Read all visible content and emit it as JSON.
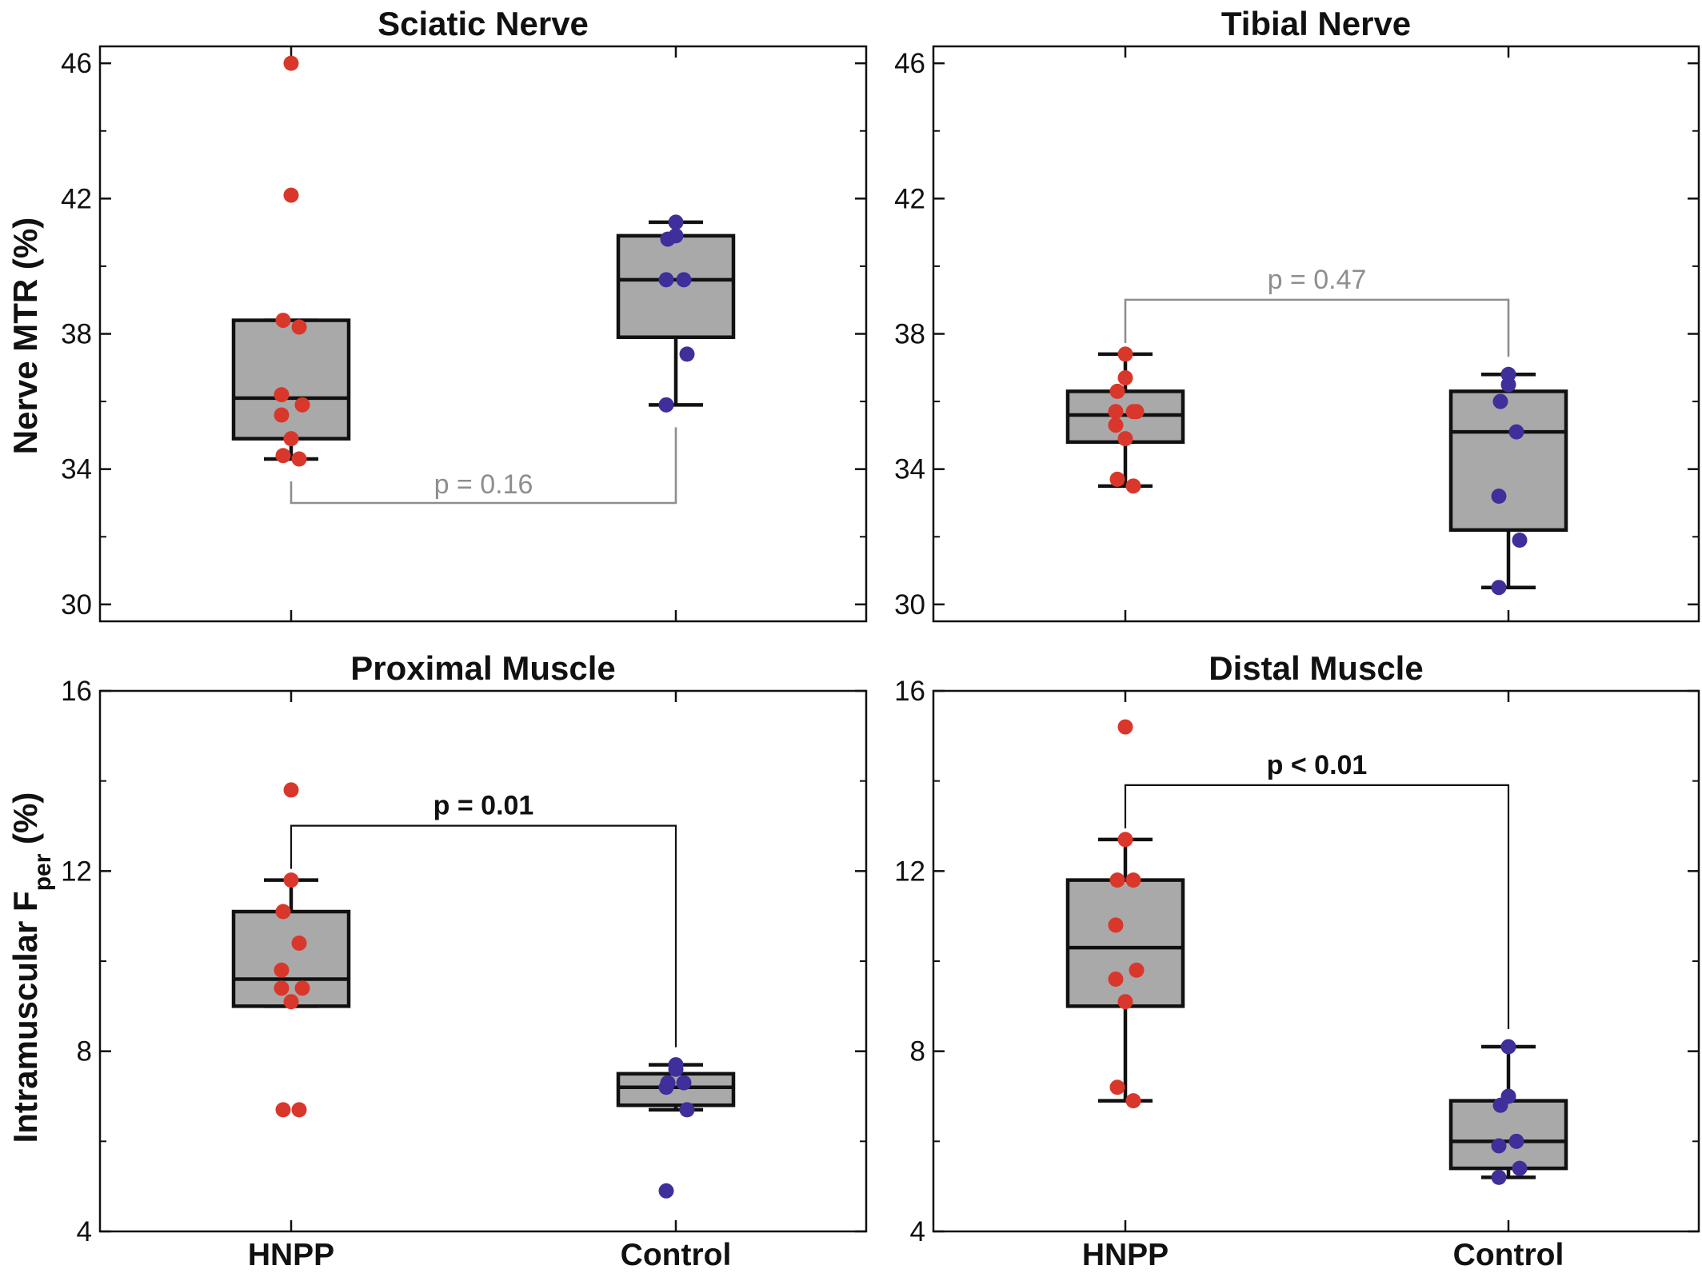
{
  "ylabels": {
    "top": "Nerve MTR (%)",
    "bottom_prefix": "Intramuscular F",
    "bottom_sub": "per",
    "bottom_suffix": " (%)"
  },
  "colors": {
    "hnpp_points": "#d9372b",
    "control_points": "#3f2f9a",
    "box_fill": "#a9a9a9",
    "box_stroke": "#111111",
    "pvalue_ns": "#8e8e8e",
    "pvalue_sig": "#111111"
  },
  "chart_data": [
    {
      "type": "box",
      "title": "Sciatic Nerve",
      "categories": [
        "HNPP",
        "Control"
      ],
      "ylim": [
        29.5,
        46.5
      ],
      "yticks": [
        30,
        34,
        38,
        42,
        46
      ],
      "ylabel": "Nerve MTR (%)",
      "boxes": [
        {
          "whisker_low": 34.3,
          "q1": 34.9,
          "median": 36.1,
          "q3": 38.4,
          "whisker_high": 38.4
        },
        {
          "whisker_low": 35.9,
          "q1": 37.9,
          "median": 39.6,
          "q3": 40.9,
          "whisker_high": 41.3
        }
      ],
      "points": [
        [
          46.0,
          42.1,
          38.4,
          38.2,
          36.2,
          35.9,
          35.6,
          34.9,
          34.4,
          34.3
        ],
        [
          41.3,
          40.9,
          40.8,
          39.6,
          39.6,
          37.4,
          35.9
        ]
      ],
      "pvalue": {
        "text": "p = 0.16",
        "significant": false,
        "bracket": "below"
      }
    },
    {
      "type": "box",
      "title": "Tibial Nerve",
      "categories": [
        "HNPP",
        "Control"
      ],
      "ylim": [
        29.5,
        46.5
      ],
      "yticks": [
        30,
        34,
        38,
        42,
        46
      ],
      "ylabel": "",
      "boxes": [
        {
          "whisker_low": 33.5,
          "q1": 34.8,
          "median": 35.6,
          "q3": 36.3,
          "whisker_high": 37.4
        },
        {
          "whisker_low": 30.5,
          "q1": 32.2,
          "median": 35.1,
          "q3": 36.3,
          "whisker_high": 36.8
        }
      ],
      "points": [
        [
          37.4,
          36.7,
          36.3,
          35.7,
          35.7,
          35.7,
          35.3,
          34.9,
          33.7,
          33.5
        ],
        [
          36.8,
          36.5,
          36.0,
          35.1,
          33.2,
          31.9,
          30.5
        ]
      ],
      "pvalue": {
        "text": "p = 0.47",
        "significant": false,
        "bracket": "above"
      }
    },
    {
      "type": "box",
      "title": "Proximal Muscle",
      "categories": [
        "HNPP",
        "Control"
      ],
      "ylim": [
        4,
        16
      ],
      "yticks": [
        4,
        8,
        12,
        16
      ],
      "ylabel": "Intramuscular Fper (%)",
      "boxes": [
        {
          "whisker_low": 9.0,
          "q1": 9.0,
          "median": 9.6,
          "q3": 11.1,
          "whisker_high": 11.8
        },
        {
          "whisker_low": 6.7,
          "q1": 6.8,
          "median": 7.2,
          "q3": 7.5,
          "whisker_high": 7.7
        }
      ],
      "points": [
        [
          13.8,
          11.8,
          11.1,
          10.4,
          9.8,
          9.4,
          9.4,
          9.1,
          6.7,
          6.7
        ],
        [
          7.7,
          7.6,
          7.3,
          7.3,
          7.2,
          6.7,
          4.9
        ]
      ],
      "pvalue": {
        "text": "p = 0.01",
        "significant": true,
        "bracket": "above"
      }
    },
    {
      "type": "box",
      "title": "Distal Muscle",
      "categories": [
        "HNPP",
        "Control"
      ],
      "ylim": [
        4,
        16
      ],
      "yticks": [
        4,
        8,
        12,
        16
      ],
      "ylabel": "",
      "boxes": [
        {
          "whisker_low": 6.9,
          "q1": 9.0,
          "median": 10.3,
          "q3": 11.8,
          "whisker_high": 12.7
        },
        {
          "whisker_low": 5.2,
          "q1": 5.4,
          "median": 6.0,
          "q3": 6.9,
          "whisker_high": 8.1
        }
      ],
      "points": [
        [
          15.2,
          12.7,
          11.8,
          11.8,
          10.8,
          9.8,
          9.6,
          9.1,
          7.2,
          6.9
        ],
        [
          8.1,
          7.0,
          6.8,
          6.0,
          5.9,
          5.4,
          5.2
        ]
      ],
      "pvalue": {
        "text": "p < 0.01",
        "significant": true,
        "bracket": "above"
      }
    }
  ]
}
